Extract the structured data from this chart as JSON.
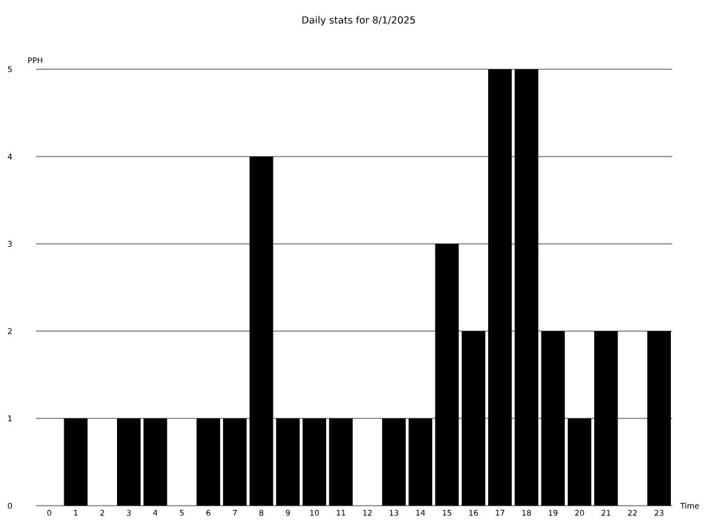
{
  "chart_data": {
    "type": "bar",
    "title": "Daily stats for 8/1/2025",
    "xlabel": "Time",
    "ylabel": "PPH",
    "categories": [
      "0",
      "1",
      "2",
      "3",
      "4",
      "5",
      "6",
      "7",
      "8",
      "9",
      "10",
      "11",
      "12",
      "13",
      "14",
      "15",
      "16",
      "17",
      "18",
      "19",
      "20",
      "21",
      "22",
      "23"
    ],
    "values": [
      0,
      1,
      0,
      1,
      1,
      0,
      1,
      1,
      4,
      1,
      1,
      1,
      0,
      1,
      1,
      3,
      2,
      5,
      5,
      2,
      1,
      2,
      0,
      2
    ],
    "color": "#000000",
    "ylim": [
      0,
      5
    ],
    "yticks": [
      0,
      1,
      2,
      3,
      4,
      5
    ],
    "grid": "y"
  }
}
